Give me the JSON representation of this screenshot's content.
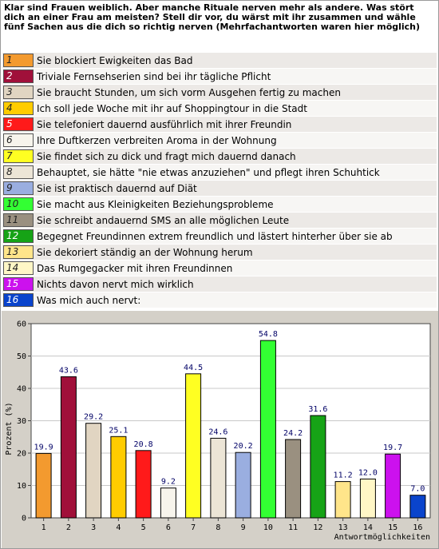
{
  "question": "Klar sind Frauen weiblich. Aber manche Rituale nerven mehr als andere. Was stört dich an einer Frau am meisten? Stell dir vor, du wärst mit ihr zusammen und wähle fünf Sachen aus die dich so richtig nerven (Mehrfachantworten waren hier möglich)",
  "answers": [
    {
      "num": "1",
      "text": "Sie blockiert Ewigkeiten das Bad",
      "color": "#f39a2f"
    },
    {
      "num": "2",
      "text": "Triviale Fernsehserien sind bei ihr tägliche Pflicht",
      "color": "#a0103a"
    },
    {
      "num": "3",
      "text": "Sie braucht Stunden, um sich vorm Ausgehen fertig zu machen",
      "color": "#e1d5c2"
    },
    {
      "num": "4",
      "text": "Ich soll jede Woche mit ihr auf Shoppingtour in die Stadt",
      "color": "#ffcc00"
    },
    {
      "num": "5",
      "text": "Sie telefoniert dauernd ausführlich mit ihrer Freundin",
      "color": "#ff1a1a"
    },
    {
      "num": "6",
      "text": "Ihre Duftkerzen verbreiten Aroma in der Wohnung",
      "color": "#f7f4ec"
    },
    {
      "num": "7",
      "text": "Sie findet sich zu dick und fragt mich dauernd danach",
      "color": "#ffff22"
    },
    {
      "num": "8",
      "text": "Behauptet, sie hätte \"nie etwas anzuziehen\" und pflegt ihren Schuhtick",
      "color": "#ece5d6"
    },
    {
      "num": "9",
      "text": "Sie ist praktisch dauernd auf Diät",
      "color": "#9aaee0"
    },
    {
      "num": "10",
      "text": "Sie macht aus Kleinigkeiten Beziehungsprobleme",
      "color": "#33ff33"
    },
    {
      "num": "11",
      "text": "Sie schreibt andauernd SMS an alle möglichen Leute",
      "color": "#9a9080"
    },
    {
      "num": "12",
      "text": "Begegnet Freundinnen extrem freundlich und lästert hinterher über sie ab",
      "color": "#16a316"
    },
    {
      "num": "13",
      "text": "Sie dekoriert ständig an der Wohnung herum",
      "color": "#ffe58a"
    },
    {
      "num": "14",
      "text": "Das Rumgegacker mit ihren Freundinnen",
      "color": "#fff7c6"
    },
    {
      "num": "15",
      "text": "Nichts davon nervt mich wirklich",
      "color": "#cc11ee"
    },
    {
      "num": "16",
      "text": "Was mich auch nervt:",
      "color": "#0a44cc"
    }
  ],
  "chart_data": {
    "type": "bar",
    "categories": [
      "1",
      "2",
      "3",
      "4",
      "5",
      "6",
      "7",
      "8",
      "9",
      "10",
      "11",
      "12",
      "13",
      "14",
      "15",
      "16"
    ],
    "values": [
      19.9,
      43.6,
      29.2,
      25.1,
      20.8,
      9.2,
      44.5,
      24.6,
      20.2,
      54.8,
      24.2,
      31.6,
      11.2,
      12.0,
      19.7,
      7.0
    ],
    "value_labels": [
      "19.9",
      "43.6",
      "29.2",
      "25.1",
      "20.8",
      "9.2",
      "44.5",
      "24.6",
      "20.2",
      "54.8",
      "24.2",
      "31.6",
      "11.2",
      "12.0",
      "19.7",
      "7.0"
    ],
    "ylabel": "Prozent (%)",
    "xlabel": "Antwortmöglichkeiten",
    "ylim": [
      0,
      60
    ],
    "yticks": [
      "0",
      "10",
      "20",
      "30",
      "40",
      "50",
      "60"
    ],
    "grid": true,
    "bar_colors": [
      "#f39a2f",
      "#a0103a",
      "#e1d5c2",
      "#ffcc00",
      "#ff1a1a",
      "#f7f4ec",
      "#ffff22",
      "#ece5d6",
      "#9aaee0",
      "#33ff33",
      "#9a9080",
      "#16a316",
      "#ffe58a",
      "#fff7c6",
      "#cc11ee",
      "#0a44cc"
    ]
  }
}
